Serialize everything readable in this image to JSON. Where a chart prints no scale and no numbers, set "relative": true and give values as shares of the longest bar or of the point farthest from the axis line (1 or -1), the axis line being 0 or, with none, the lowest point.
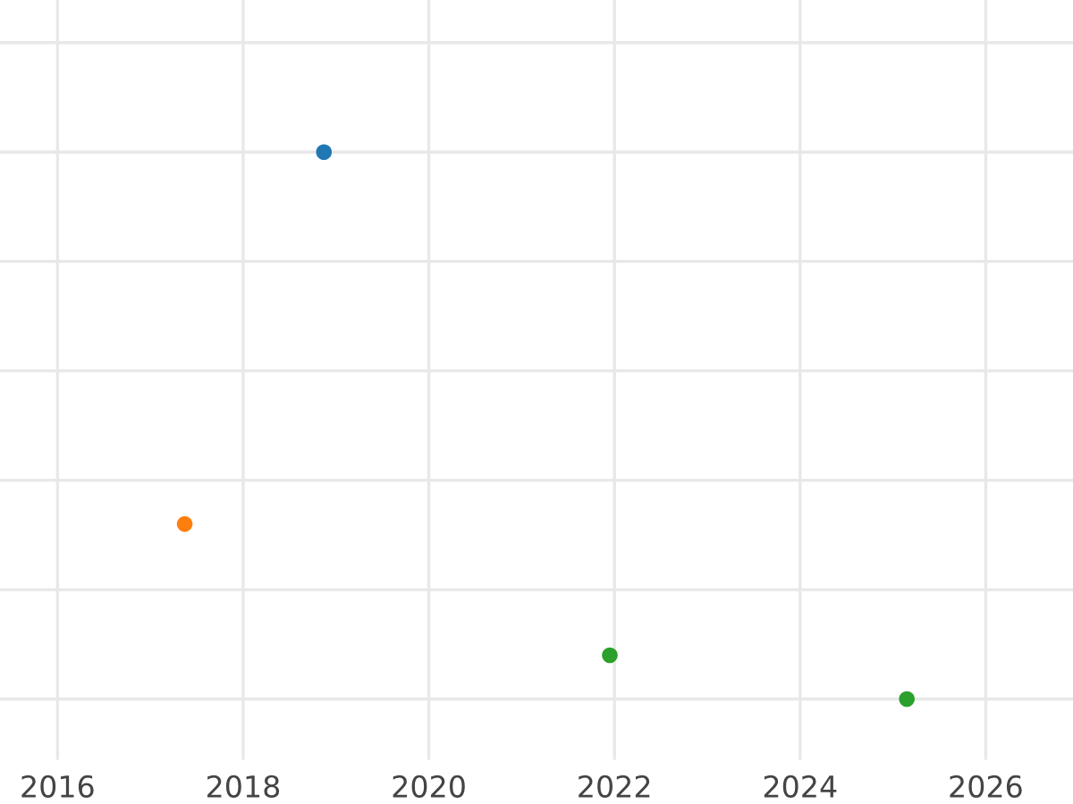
{
  "chart_data": {
    "type": "scatter",
    "relative": true,
    "series": [
      {
        "color": "#1f77b4",
        "x": [
          2018.87
        ],
        "values": [
          1
        ]
      },
      {
        "color": "#ff7f0e",
        "x": [
          2017.37
        ],
        "values": [
          0.32
        ]
      },
      {
        "color": "#2ca02c",
        "x": [
          2021.95,
          2025.15
        ],
        "values": [
          0.08,
          0
        ]
      }
    ],
    "xlim": [
      2015.38,
      2026.94
    ],
    "xticks": [
      2016,
      2018,
      2020,
      2022,
      2024,
      2026
    ],
    "grid": true,
    "tick_labels": "x",
    "marker": "circle"
  }
}
